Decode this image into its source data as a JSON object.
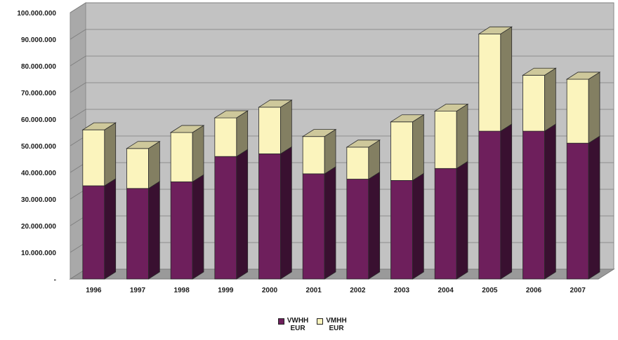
{
  "chart_data": {
    "type": "bar",
    "stacked": true,
    "three_d": true,
    "categories": [
      "1996",
      "1997",
      "1998",
      "1999",
      "2000",
      "2001",
      "2002",
      "2003",
      "2004",
      "2005",
      "2006",
      "2007"
    ],
    "series": [
      {
        "name": "VWHH EUR",
        "color": "#6e1f5c",
        "values": [
          35000000,
          34000000,
          36500000,
          46000000,
          47000000,
          39500000,
          37500000,
          37000000,
          41500000,
          55500000,
          55500000,
          51000000
        ]
      },
      {
        "name": "VMHH EUR",
        "color": "#fbf4bd",
        "values": [
          21000000,
          15000000,
          18500000,
          14500000,
          17500000,
          14000000,
          12000000,
          22000000,
          21500000,
          36500000,
          21000000,
          24000000
        ]
      }
    ],
    "ylim": [
      0,
      100000000
    ],
    "y_ticks": [
      "-",
      "10.000.000",
      "20.000.000",
      "30.000.000",
      "40.000.000",
      "50.000.000",
      "60.000.000",
      "70.000.000",
      "80.000.000",
      "90.000.000",
      "100.000.000"
    ],
    "grid": true,
    "legend": {
      "placement": "bottom",
      "items": [
        {
          "line1": "VWHH",
          "line2": "EUR"
        },
        {
          "line1": "VMHH",
          "line2": "EUR"
        }
      ]
    },
    "title": "",
    "xlabel": "",
    "ylabel": ""
  }
}
